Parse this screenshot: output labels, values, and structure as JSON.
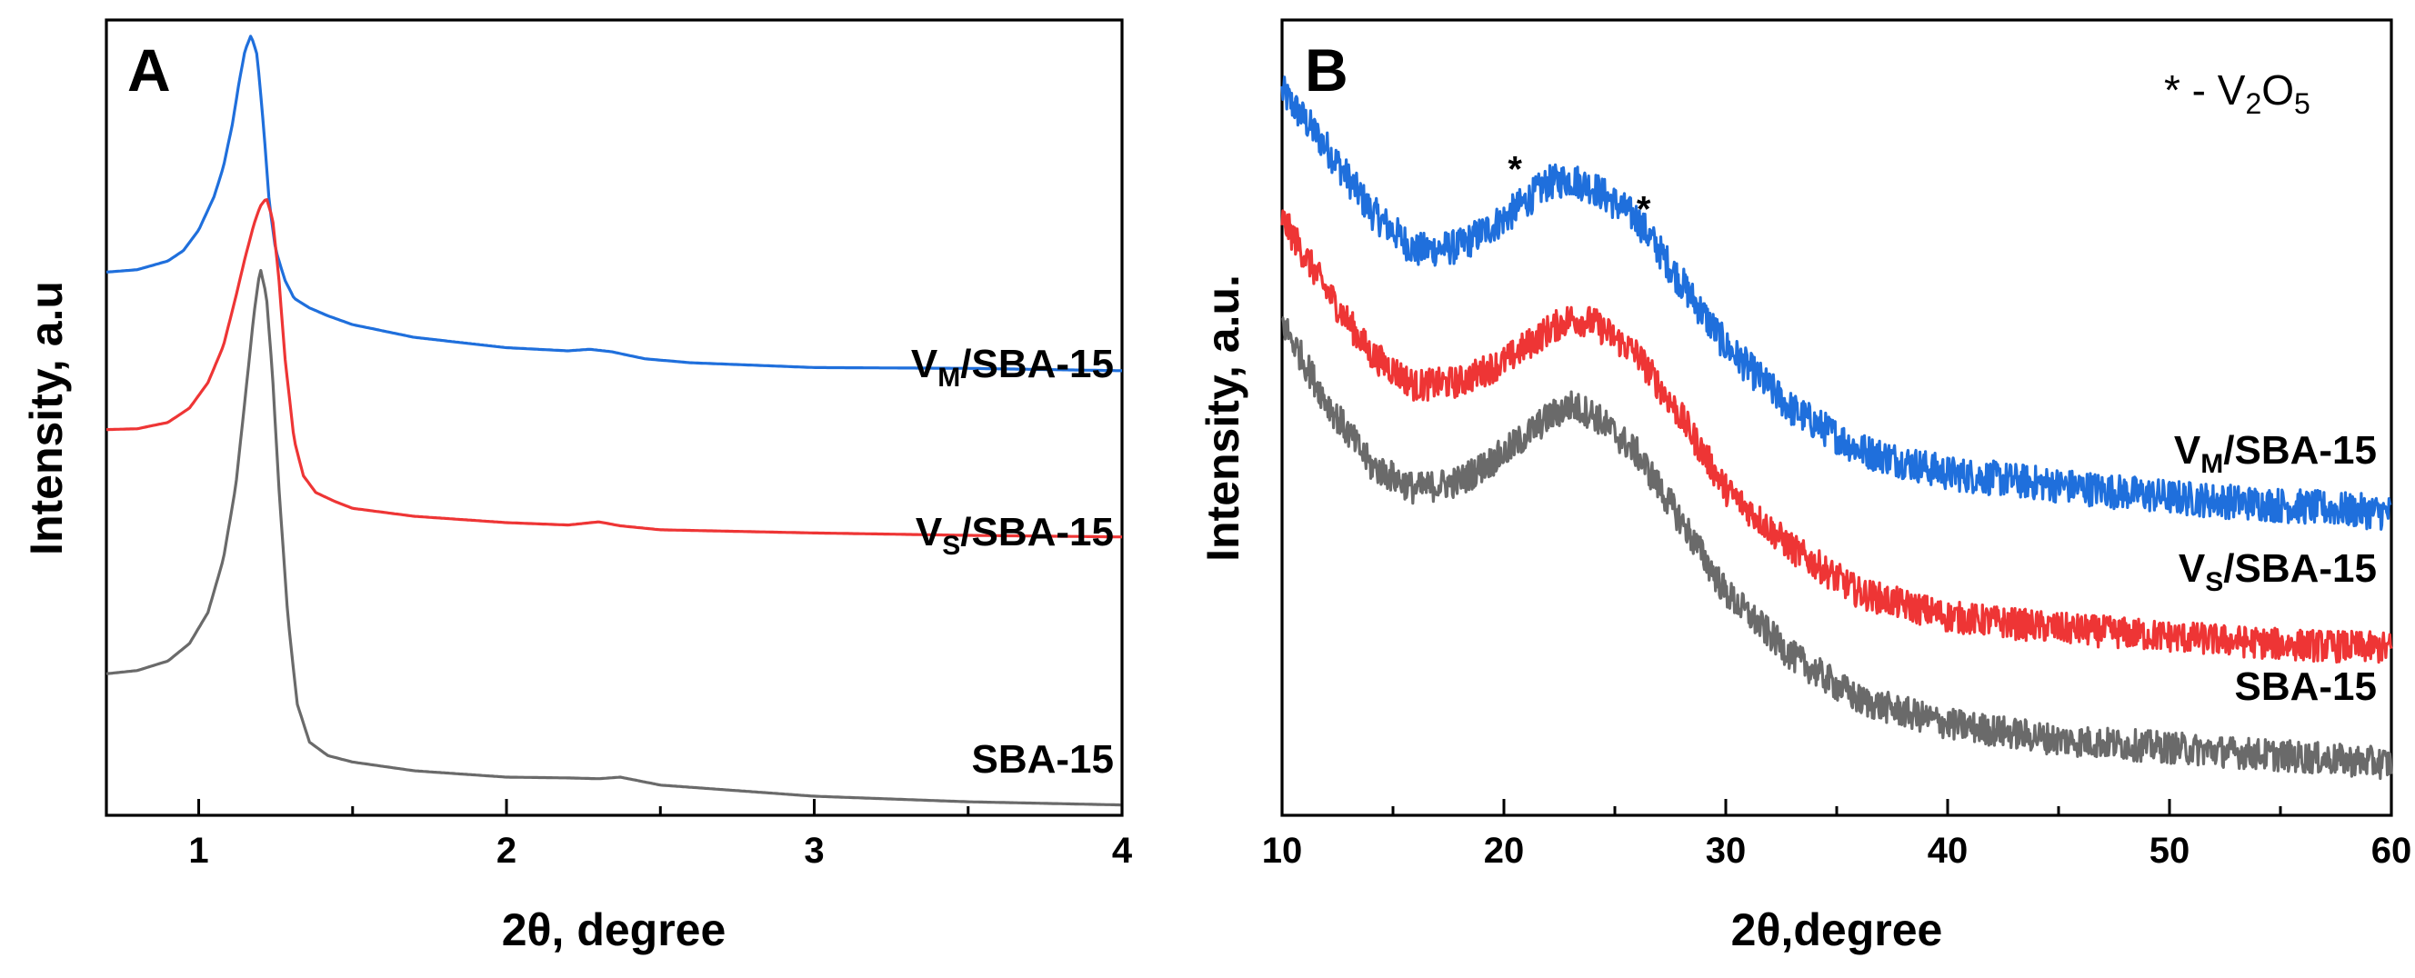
{
  "chart_data": [
    {
      "panel": "A",
      "type": "line",
      "title": "",
      "xlabel": "2θ, degree",
      "ylabel": "Intensity, a.u",
      "xlim": [
        0.7,
        4.0
      ],
      "ylim": [
        0,
        100
      ],
      "xticks_major": [
        "1",
        "2",
        "3",
        "4"
      ],
      "xticks_minor": [
        1.5,
        2.5,
        3.5
      ],
      "grid": false,
      "series": [
        {
          "name": "VM/SBA-15",
          "label_main": "V",
          "label_sub": "M",
          "label_rest": "/SBA-15",
          "color": "#1f6fdc",
          "x": [
            0.7,
            0.8,
            0.9,
            0.95,
            1.0,
            1.05,
            1.08,
            1.11,
            1.13,
            1.15,
            1.17,
            1.19,
            1.21,
            1.23,
            1.25,
            1.28,
            1.31,
            1.36,
            1.42,
            1.5,
            1.7,
            2.0,
            2.2,
            2.27,
            2.34,
            2.45,
            2.6,
            3.0,
            3.5,
            4.0
          ],
          "y": [
            68.3,
            68.6,
            69.7,
            71.0,
            73.6,
            77.8,
            81.5,
            87.0,
            91.9,
            96.1,
            98.1,
            95.6,
            86.9,
            76.7,
            71.1,
            67.3,
            65.0,
            63.8,
            62.8,
            61.7,
            60.1,
            58.8,
            58.4,
            58.6,
            58.3,
            57.4,
            56.9,
            56.3,
            56.2,
            55.9
          ]
        },
        {
          "name": "VS/SBA-15",
          "label_main": "V",
          "label_sub": "S",
          "label_rest": "/SBA-15",
          "color": "#ee3535",
          "x": [
            0.7,
            0.8,
            0.9,
            0.97,
            1.03,
            1.08,
            1.12,
            1.15,
            1.18,
            1.2,
            1.22,
            1.24,
            1.26,
            1.28,
            1.31,
            1.34,
            1.38,
            1.44,
            1.5,
            1.7,
            2.0,
            2.2,
            2.3,
            2.37,
            2.5,
            3.0,
            3.5,
            4.0
          ],
          "y": [
            48.5,
            48.6,
            49.4,
            51.2,
            54.4,
            59.0,
            65.1,
            70.0,
            74.4,
            76.6,
            77.6,
            75.0,
            67.7,
            57.6,
            47.2,
            42.7,
            40.6,
            39.5,
            38.6,
            37.6,
            36.8,
            36.5,
            36.9,
            36.4,
            35.9,
            35.5,
            35.2,
            35.0
          ]
        },
        {
          "name": "SBA-15",
          "label_main": "SBA-15",
          "label_sub": "",
          "label_rest": "",
          "color": "#6a6a6a",
          "x": [
            0.7,
            0.8,
            0.9,
            0.97,
            1.03,
            1.08,
            1.12,
            1.15,
            1.18,
            1.2,
            1.22,
            1.24,
            1.26,
            1.29,
            1.32,
            1.36,
            1.42,
            1.5,
            1.7,
            2.0,
            2.2,
            2.3,
            2.37,
            2.5,
            3.0,
            3.5,
            4.0
          ],
          "y": [
            17.8,
            18.2,
            19.4,
            21.6,
            25.5,
            32.2,
            41.3,
            52.1,
            63.2,
            68.8,
            65.3,
            55.2,
            41.5,
            24.8,
            14.0,
            9.2,
            7.5,
            6.7,
            5.6,
            4.8,
            4.7,
            4.6,
            4.8,
            3.8,
            2.4,
            1.7,
            1.3
          ]
        }
      ]
    },
    {
      "panel": "B",
      "type": "line",
      "title": "",
      "xlabel": "2θ,degree",
      "ylabel": "Intensity, a.u.",
      "xlim": [
        10,
        60
      ],
      "ylim": [
        0,
        100
      ],
      "xticks_major": [
        "10",
        "20",
        "30",
        "40",
        "50",
        "60"
      ],
      "xticks_minor": [
        15,
        25,
        35,
        45,
        55
      ],
      "grid": false,
      "legend_note": {
        "prefix": "* - V",
        "sub1": "2",
        "mid": "O",
        "sub2": "5"
      },
      "annotations": [
        {
          "text": "*",
          "x": 20.5,
          "y": 82
        },
        {
          "text": "*",
          "x": 26.3,
          "y": 77
        }
      ],
      "series": [
        {
          "name": "VM/SBA-15",
          "label_main": "V",
          "label_sub": "M",
          "label_rest": "/SBA-15",
          "color": "#1f6fdc",
          "noise_amplitude": 2.2,
          "x": [
            10,
            12,
            14,
            16,
            18,
            20,
            22,
            23,
            24,
            26,
            28,
            30,
            33,
            36,
            40,
            45,
            50,
            55,
            60
          ],
          "y": [
            91,
            84,
            76,
            71,
            71.5,
            75,
            79.5,
            80,
            79,
            75,
            67,
            59,
            51,
            46,
            43,
            41.5,
            40,
            39,
            38
          ]
        },
        {
          "name": "VS/SBA-15",
          "label_main": "V",
          "label_sub": "S",
          "label_rest": "/SBA-15",
          "color": "#ee3535",
          "noise_amplitude": 2.0,
          "x": [
            10,
            12,
            14,
            16,
            18,
            20,
            22,
            23,
            24,
            26,
            28,
            30,
            33,
            36,
            40,
            45,
            50,
            55,
            60
          ],
          "y": [
            75,
            66,
            58,
            54,
            54.5,
            57,
            61,
            62.5,
            62,
            58,
            50,
            41,
            33.5,
            28,
            25,
            23.5,
            22.5,
            21.5,
            21
          ]
        },
        {
          "name": "SBA-15",
          "label_main": "SBA-15",
          "label_sub": "",
          "label_rest": "",
          "color": "#6a6a6a",
          "noise_amplitude": 2.0,
          "x": [
            10,
            12,
            14,
            16,
            18,
            20,
            22,
            23,
            24,
            26,
            28,
            30,
            33,
            36,
            40,
            45,
            50,
            55,
            60
          ],
          "y": [
            62,
            52,
            44,
            41,
            42,
            45.5,
            50,
            51.5,
            50.5,
            45.5,
            37,
            28,
            20,
            14.5,
            11.5,
            9.5,
            8.5,
            7.5,
            6.5
          ]
        }
      ]
    }
  ]
}
